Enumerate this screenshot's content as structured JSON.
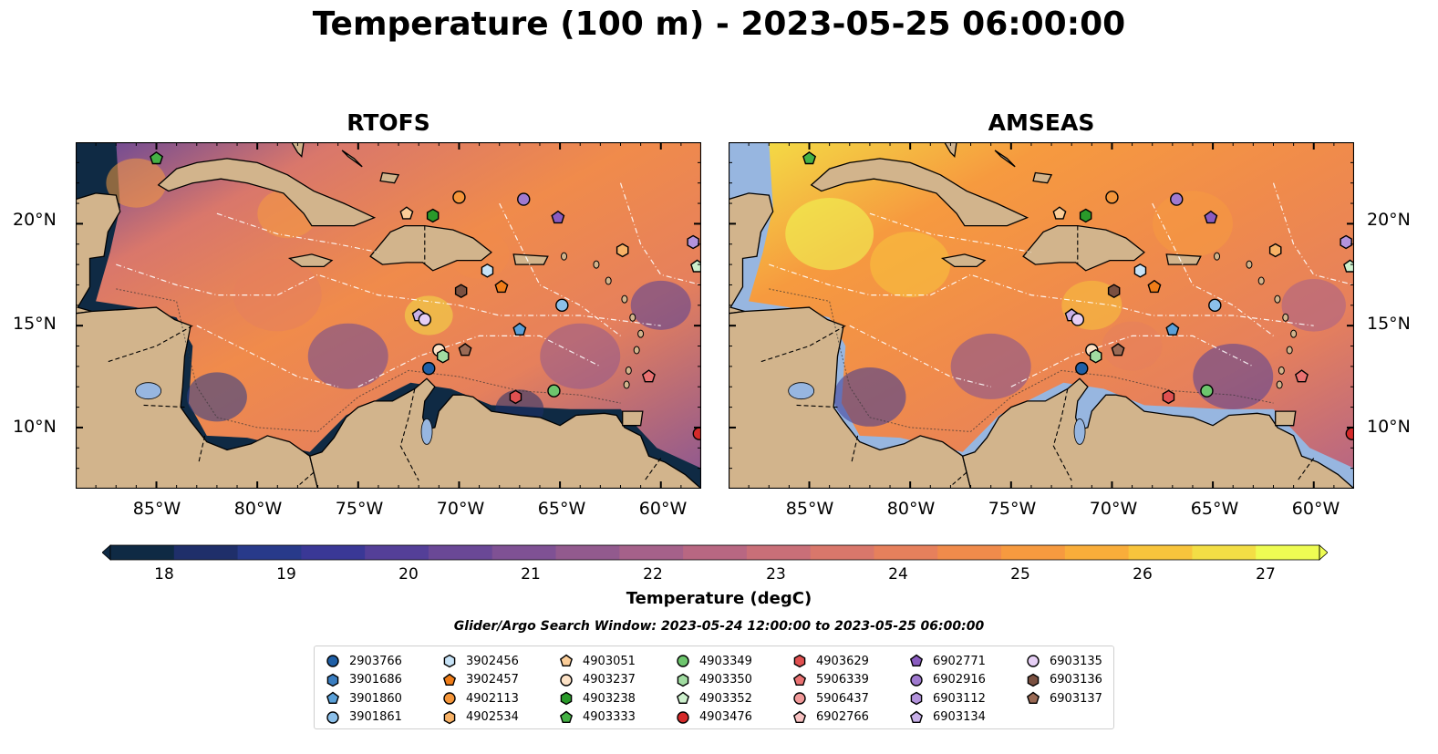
{
  "title": "Temperature (100 m) - 2023-05-25 06:00:00",
  "panels": [
    {
      "title": "RTOFS",
      "model": "rtofs"
    },
    {
      "title": "AMSEAS",
      "model": "amseas"
    }
  ],
  "lat_labels": [
    "20°N",
    "15°N",
    "10°N"
  ],
  "lat_values": [
    20,
    15,
    10
  ],
  "lon_labels": [
    "85°W",
    "80°W",
    "75°W",
    "70°W",
    "65°W",
    "60°W"
  ],
  "lon_values": [
    -85,
    -80,
    -75,
    -70,
    -65,
    -60
  ],
  "extent": {
    "lon": [
      -89,
      -58
    ],
    "lat": [
      7,
      24
    ]
  },
  "colorbar": {
    "title": "Temperature (degC)",
    "ticks": [
      "18",
      "19",
      "20",
      "21",
      "22",
      "23",
      "24",
      "25",
      "26",
      "27"
    ],
    "range": [
      18,
      27
    ],
    "colors": [
      "#0f2a44",
      "#1f2f6a",
      "#283a8a",
      "#3a3896",
      "#543f98",
      "#6a4896",
      "#7f5194",
      "#925a8e",
      "#a5618a",
      "#b86782",
      "#c96f78",
      "#d9776b",
      "#e6805c",
      "#f08b4b",
      "#f69a3f",
      "#f9ad3a",
      "#f8c43c",
      "#f3de45",
      "#eefc53"
    ]
  },
  "search_window": "Glider/Argo Search Window: 2023-05-24 12:00:00 to 2023-05-25 06:00:00",
  "colors": {
    "land": "#d2b48c",
    "water": "#97b6e0",
    "border": "#000000"
  },
  "legend": [
    {
      "id": "2903766",
      "marker": "circle",
      "color": "#1f5fa6"
    },
    {
      "id": "3901686",
      "marker": "hexagon",
      "color": "#3a7dc0"
    },
    {
      "id": "3901860",
      "marker": "pentagon",
      "color": "#5aa0d8"
    },
    {
      "id": "3901861",
      "marker": "circle",
      "color": "#8cc0ea"
    },
    {
      "id": "3902456",
      "marker": "hexagon",
      "color": "#c7e3f7"
    },
    {
      "id": "3902457",
      "marker": "pentagon",
      "color": "#f07d18"
    },
    {
      "id": "4902113",
      "marker": "circle",
      "color": "#f5963a"
    },
    {
      "id": "4902534",
      "marker": "hexagon",
      "color": "#f8b266"
    },
    {
      "id": "4903051",
      "marker": "pentagon",
      "color": "#fbcd98"
    },
    {
      "id": "4903237",
      "marker": "circle",
      "color": "#fde2c6"
    },
    {
      "id": "4903238",
      "marker": "hexagon",
      "color": "#2a9a2a"
    },
    {
      "id": "4903333",
      "marker": "pentagon",
      "color": "#45b145"
    },
    {
      "id": "4903349",
      "marker": "circle",
      "color": "#6dc56d"
    },
    {
      "id": "4903350",
      "marker": "hexagon",
      "color": "#a1dca1"
    },
    {
      "id": "4903352",
      "marker": "pentagon",
      "color": "#cdf0cd"
    },
    {
      "id": "4903476",
      "marker": "circle",
      "color": "#d52a2a"
    },
    {
      "id": "4903629",
      "marker": "hexagon",
      "color": "#e05050"
    },
    {
      "id": "5906339",
      "marker": "pentagon",
      "color": "#ea7272"
    },
    {
      "id": "5906437",
      "marker": "circle",
      "color": "#f19999"
    },
    {
      "id": "6902766",
      "marker": "pentagon",
      "color": "#f8c2c2"
    },
    {
      "id": "6902771",
      "marker": "pentagon",
      "color": "#8a5cc0"
    },
    {
      "id": "6902916",
      "marker": "circle",
      "color": "#a07ad0"
    },
    {
      "id": "6903112",
      "marker": "hexagon",
      "color": "#b393dc"
    },
    {
      "id": "6903134",
      "marker": "pentagon",
      "color": "#c8b0e8"
    },
    {
      "id": "6903135",
      "marker": "circle",
      "color": "#e6cff5"
    },
    {
      "id": "6903136",
      "marker": "hexagon",
      "color": "#7a5040"
    },
    {
      "id": "6903137",
      "marker": "pentagon",
      "color": "#9a6a55"
    }
  ],
  "floats": [
    {
      "id": "4903333",
      "lon": -85.0,
      "lat": 23.2
    },
    {
      "id": "4902113",
      "lon": -70.0,
      "lat": 21.3
    },
    {
      "id": "6902916",
      "lon": -66.8,
      "lat": 21.2
    },
    {
      "id": "6902771",
      "lon": -65.1,
      "lat": 20.3
    },
    {
      "id": "4903051",
      "lon": -72.6,
      "lat": 20.5
    },
    {
      "id": "4903238",
      "lon": -71.3,
      "lat": 20.4
    },
    {
      "id": "6903112",
      "lon": -58.4,
      "lat": 19.1
    },
    {
      "id": "4902534",
      "lon": -61.9,
      "lat": 18.7
    },
    {
      "id": "4903352",
      "lon": -58.2,
      "lat": 17.9
    },
    {
      "id": "3902456",
      "lon": -68.6,
      "lat": 17.7
    },
    {
      "id": "3902457",
      "lon": -67.9,
      "lat": 16.9
    },
    {
      "id": "6903136",
      "lon": -69.9,
      "lat": 16.7
    },
    {
      "id": "3901861",
      "lon": -64.9,
      "lat": 16.0
    },
    {
      "id": "6903134",
      "lon": -72.0,
      "lat": 15.5
    },
    {
      "id": "6903135",
      "lon": -71.7,
      "lat": 15.3
    },
    {
      "id": "3901860",
      "lon": -67.0,
      "lat": 14.8
    },
    {
      "id": "4903237",
      "lon": -71.0,
      "lat": 13.8
    },
    {
      "id": "6903137",
      "lon": -69.7,
      "lat": 13.8
    },
    {
      "id": "4903350",
      "lon": -70.8,
      "lat": 13.5
    },
    {
      "id": "2903766",
      "lon": -71.5,
      "lat": 12.9
    },
    {
      "id": "5906339",
      "lon": -60.6,
      "lat": 12.5
    },
    {
      "id": "4903349",
      "lon": -65.3,
      "lat": 11.8
    },
    {
      "id": "4903629",
      "lon": -67.2,
      "lat": 11.5
    },
    {
      "id": "4903476",
      "lon": -58.1,
      "lat": 9.7
    }
  ]
}
